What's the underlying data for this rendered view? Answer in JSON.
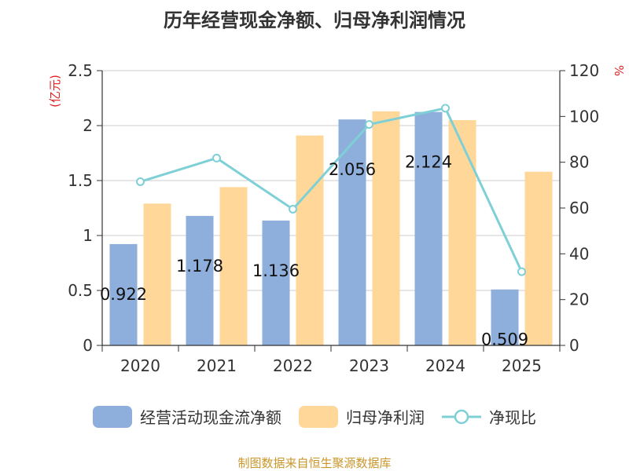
{
  "chart_data": {
    "type": "bar",
    "title": "历年经营现金净额、归母净利润情况",
    "categories": [
      "2020",
      "2021",
      "2022",
      "2023",
      "2024",
      "2025"
    ],
    "series": [
      {
        "name": "经营活动现金流净额",
        "axis": "left",
        "color": "#8eaedb",
        "values": [
          0.922,
          1.178,
          1.136,
          2.056,
          2.124,
          0.509
        ],
        "labels": [
          "0.922",
          "1.178",
          "1.136",
          "2.056",
          "2.124",
          "0.509"
        ]
      },
      {
        "name": "归母净利润",
        "axis": "left",
        "color": "#ffd799",
        "values": [
          1.29,
          1.44,
          1.91,
          2.13,
          2.05,
          1.58
        ]
      },
      {
        "name": "净现比",
        "axis": "right",
        "type": "line",
        "color": "#7fd0d6",
        "values": [
          71.5,
          81.8,
          59.5,
          96.5,
          103.6,
          32.2
        ]
      }
    ],
    "left_axis": {
      "label": "(亿元)",
      "ylim": [
        0,
        2.5
      ],
      "ticks": [
        "0",
        "0.5",
        "1",
        "1.5",
        "2",
        "2.5"
      ]
    },
    "right_axis": {
      "label": "%",
      "ylim": [
        0,
        120
      ],
      "ticks": [
        "0",
        "20",
        "40",
        "60",
        "80",
        "100",
        "120"
      ]
    },
    "grid": true,
    "legend_position": "bottom"
  },
  "source_text": "制图数据来自恒生聚源数据库"
}
